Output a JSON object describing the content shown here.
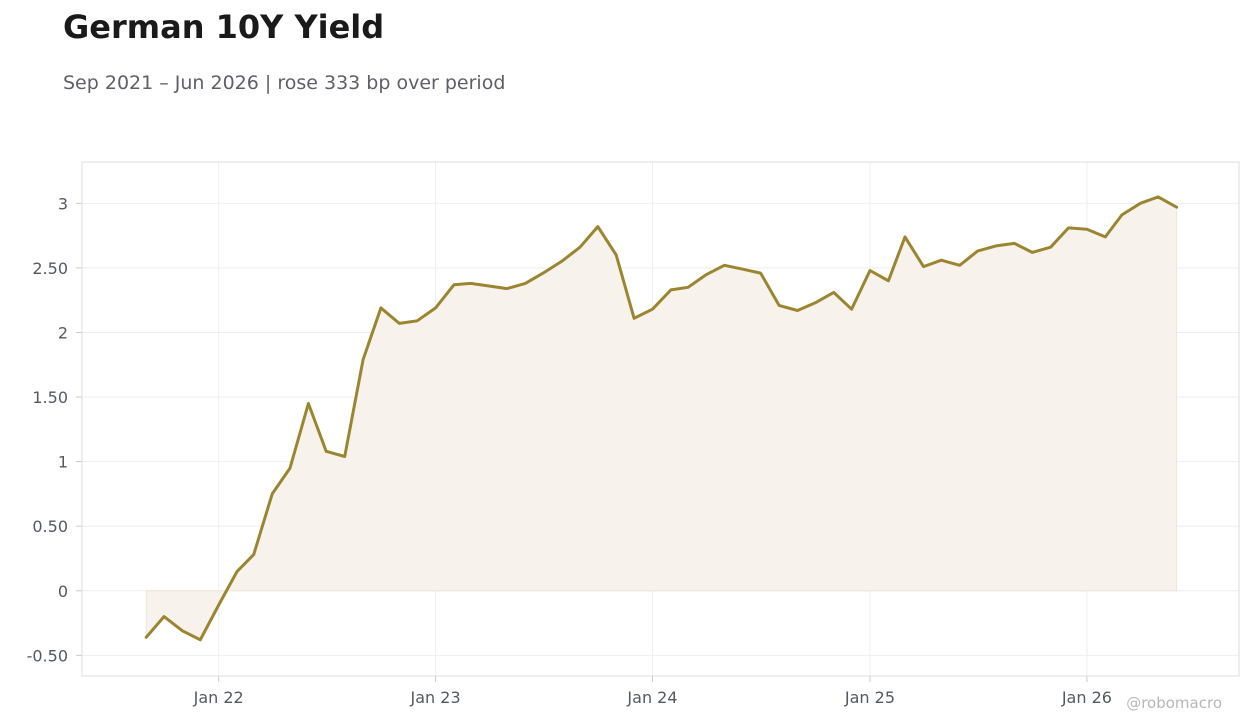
{
  "title": "German 10Y Yield",
  "subtitle": "Sep 2021 – Jun 2026 | rose 333 bp over period",
  "watermark": "@robomacro",
  "colors": {
    "line": "#9c8530",
    "fill": "#f7f3ec",
    "grid": "#eeeeee",
    "frame": "#dddddd"
  },
  "chart_data": {
    "type": "area",
    "title": "German 10Y Yield",
    "subtitle": "Sep 2021 – Jun 2026 | rose 333 bp over period",
    "xlabel": "",
    "ylabel": "",
    "xlim": [
      "2021-05-16",
      "2026-09-14"
    ],
    "ylim": [
      -0.66,
      3.32
    ],
    "grid": true,
    "y_ticks": [
      {
        "value": -0.5,
        "label": "-0.50"
      },
      {
        "value": 0,
        "label": "0"
      },
      {
        "value": 0.5,
        "label": "0.50"
      },
      {
        "value": 1,
        "label": "1"
      },
      {
        "value": 1.5,
        "label": "1.50"
      },
      {
        "value": 2,
        "label": "2"
      },
      {
        "value": 2.5,
        "label": "2.50"
      },
      {
        "value": 3,
        "label": "3"
      }
    ],
    "x_ticks": [
      {
        "value": "2022-01-01",
        "label": "Jan 22"
      },
      {
        "value": "2023-01-01",
        "label": "Jan 23"
      },
      {
        "value": "2024-01-01",
        "label": "Jan 24"
      },
      {
        "value": "2025-01-01",
        "label": "Jan 25"
      },
      {
        "value": "2026-01-01",
        "label": "Jan 26"
      }
    ],
    "series": [
      {
        "x": [
          "2021-09-01",
          "2021-10-01",
          "2021-11-01",
          "2021-12-01",
          "2022-01-01",
          "2022-02-01",
          "2022-03-01",
          "2022-04-01",
          "2022-05-01",
          "2022-06-01",
          "2022-07-01",
          "2022-08-01",
          "2022-09-01",
          "2022-10-01",
          "2022-11-01",
          "2022-12-01",
          "2023-01-01",
          "2023-02-01",
          "2023-03-01",
          "2023-04-01",
          "2023-05-01",
          "2023-06-01",
          "2023-07-01",
          "2023-08-01",
          "2023-09-01",
          "2023-10-01",
          "2023-11-01",
          "2023-12-01",
          "2024-01-01",
          "2024-02-01",
          "2024-03-01",
          "2024-04-01",
          "2024-05-01",
          "2024-06-01",
          "2024-07-01",
          "2024-08-01",
          "2024-09-01",
          "2024-10-01",
          "2024-11-01",
          "2024-12-01",
          "2025-01-01",
          "2025-02-01",
          "2025-03-01",
          "2025-04-01",
          "2025-05-01",
          "2025-06-01",
          "2025-07-01",
          "2025-08-01",
          "2025-09-01",
          "2025-10-01",
          "2025-11-01",
          "2025-12-01",
          "2026-01-01",
          "2026-02-01",
          "2026-03-01",
          "2026-04-01",
          "2026-05-01",
          "2026-06-01"
        ],
        "values": [
          -0.36,
          -0.2,
          -0.31,
          -0.38,
          -0.11,
          0.15,
          0.28,
          0.75,
          0.95,
          1.45,
          1.08,
          1.04,
          1.79,
          2.19,
          2.07,
          2.09,
          2.19,
          2.37,
          2.38,
          2.36,
          2.34,
          2.38,
          2.46,
          2.55,
          2.66,
          2.82,
          2.6,
          2.11,
          2.18,
          2.33,
          2.35,
          2.45,
          2.52,
          2.49,
          2.46,
          2.21,
          2.17,
          2.23,
          2.31,
          2.18,
          2.48,
          2.4,
          2.74,
          2.51,
          2.56,
          2.52,
          2.63,
          2.67,
          2.69,
          2.62,
          2.66,
          2.81,
          2.8,
          2.74,
          2.91,
          3.0,
          3.05,
          2.97
        ]
      }
    ]
  }
}
